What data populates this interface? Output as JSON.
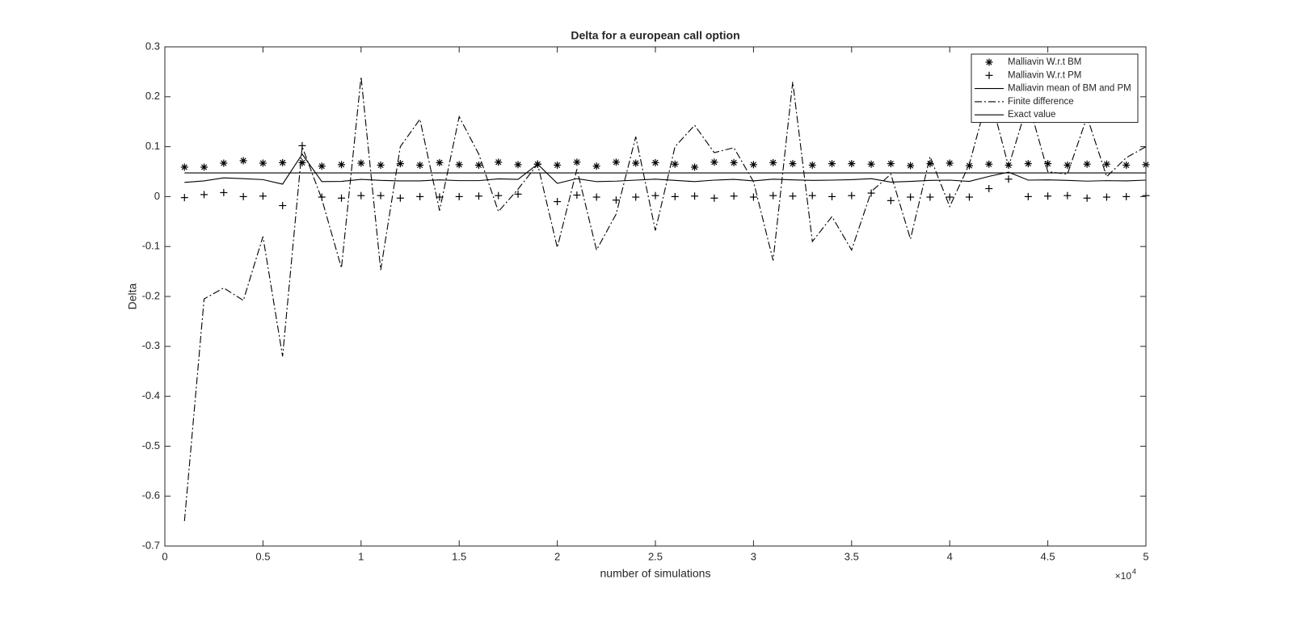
{
  "chart_data": {
    "type": "line",
    "title": "Delta for a european call option",
    "x_label": "number of simulations",
    "y_label": "Delta",
    "x_exponent": {
      "base": "×10",
      "power": "4"
    },
    "x": [
      1000,
      2000,
      3000,
      4000,
      5000,
      6000,
      7000,
      8000,
      9000,
      10000,
      11000,
      12000,
      13000,
      14000,
      15000,
      16000,
      17000,
      18000,
      19000,
      20000,
      21000,
      22000,
      23000,
      24000,
      25000,
      26000,
      27000,
      28000,
      29000,
      30000,
      31000,
      32000,
      33000,
      34000,
      35000,
      36000,
      37000,
      38000,
      39000,
      40000,
      41000,
      42000,
      43000,
      44000,
      45000,
      46000,
      47000,
      48000,
      49000,
      50000
    ],
    "xlim": [
      0,
      50000
    ],
    "xticks": [
      0,
      {
        "value": 5000,
        "label": "0.5"
      },
      {
        "value": 10000,
        "label": "1"
      },
      {
        "value": 15000,
        "label": "1.5"
      },
      {
        "value": 20000,
        "label": "2"
      },
      {
        "value": 25000,
        "label": "2.5"
      },
      {
        "value": 30000,
        "label": "3"
      },
      {
        "value": 35000,
        "label": "3.5"
      },
      {
        "value": 40000,
        "label": "4"
      },
      {
        "value": 45000,
        "label": "4.5"
      },
      {
        "value": 50000,
        "label": "5"
      }
    ],
    "ylim": [
      -0.7,
      0.3
    ],
    "yticks": [
      -0.7,
      -0.6,
      -0.5,
      -0.4,
      -0.3,
      -0.2,
      -0.1,
      0,
      0.1,
      0.2,
      0.3
    ],
    "grid": false,
    "legend": "upper-right",
    "series": [
      {
        "name": "Malliavin W.r.t BM",
        "color": "#000000",
        "marker": "*",
        "linestyle": "none",
        "values": [
          0.059,
          0.059,
          0.067,
          0.072,
          0.067,
          0.068,
          0.068,
          0.061,
          0.064,
          0.067,
          0.063,
          0.066,
          0.063,
          0.068,
          0.064,
          0.063,
          0.069,
          0.064,
          0.065,
          0.063,
          0.069,
          0.061,
          0.069,
          0.067,
          0.068,
          0.065,
          0.059,
          0.069,
          0.068,
          0.064,
          0.068,
          0.066,
          0.063,
          0.066,
          0.066,
          0.065,
          0.066,
          0.062,
          0.066,
          0.067,
          0.062,
          0.065,
          0.063,
          0.066,
          0.066,
          0.063,
          0.065,
          0.065,
          0.063,
          0.064
        ]
      },
      {
        "name": "Malliavin W.r.t PM",
        "color": "#000000",
        "marker": "+",
        "linestyle": "none",
        "values": [
          -0.002,
          0.004,
          0.008,
          0,
          0.001,
          -0.018,
          0.102,
          -0.001,
          -0.003,
          0.002,
          0.002,
          -0.003,
          0,
          -0.001,
          0,
          0.001,
          0.002,
          0.005,
          0.065,
          -0.01,
          0.003,
          -0.001,
          -0.007,
          -0.001,
          0.002,
          0,
          0.001,
          -0.003,
          0.001,
          -0.001,
          0.002,
          0.001,
          0.002,
          0,
          0.002,
          0.007,
          -0.008,
          -0.001,
          -0.001,
          -0.001,
          -0.001,
          0.016,
          0.035,
          0,
          0.001,
          0.002,
          -0.003,
          -0.001,
          0,
          0.002
        ]
      },
      {
        "name": "Malliavin mean of BM and PM",
        "color": "#000000",
        "marker": "none",
        "linestyle": "solid",
        "values": [
          0.0285,
          0.0315,
          0.0375,
          0.036,
          0.034,
          0.025,
          0.085,
          0.03,
          0.0305,
          0.0345,
          0.0325,
          0.0315,
          0.0315,
          0.0335,
          0.032,
          0.032,
          0.0355,
          0.0345,
          0.065,
          0.0265,
          0.036,
          0.03,
          0.031,
          0.033,
          0.035,
          0.0325,
          0.03,
          0.033,
          0.0345,
          0.0315,
          0.035,
          0.0335,
          0.0325,
          0.033,
          0.034,
          0.036,
          0.029,
          0.0305,
          0.0325,
          0.033,
          0.0305,
          0.0405,
          0.049,
          0.033,
          0.0335,
          0.0325,
          0.031,
          0.032,
          0.0315,
          0.033
        ]
      },
      {
        "name": "Finite difference",
        "color": "#000000",
        "marker": "none",
        "linestyle": "dashdot",
        "values": [
          -0.65,
          -0.205,
          -0.183,
          -0.208,
          -0.08,
          -0.32,
          0.1,
          -0.005,
          -0.143,
          0.24,
          -0.147,
          0.1,
          0.155,
          -0.028,
          0.16,
          0.085,
          -0.03,
          0.015,
          0.065,
          -0.102,
          0.055,
          -0.107,
          -0.035,
          0.12,
          -0.068,
          0.1,
          0.143,
          0.088,
          0.098,
          0.03,
          -0.128,
          0.23,
          -0.09,
          -0.04,
          -0.107,
          0.01,
          0.045,
          -0.085,
          0.08,
          -0.02,
          0.065,
          0.21,
          0.06,
          0.19,
          0.05,
          0.045,
          0.16,
          0.04,
          0.078,
          0.1
        ]
      },
      {
        "name": "Exact value",
        "color": "#000000",
        "marker": "none",
        "linestyle": "solid",
        "values": [
          0.0475,
          0.0475,
          0.0475,
          0.0475,
          0.0475,
          0.0475,
          0.0475,
          0.0475,
          0.0475,
          0.0475,
          0.0475,
          0.0475,
          0.0475,
          0.0475,
          0.0475,
          0.0475,
          0.0475,
          0.0475,
          0.0475,
          0.0475,
          0.0475,
          0.0475,
          0.0475,
          0.0475,
          0.0475,
          0.0475,
          0.0475,
          0.0475,
          0.0475,
          0.0475,
          0.0475,
          0.0475,
          0.0475,
          0.0475,
          0.0475,
          0.0475,
          0.0475,
          0.0475,
          0.0475,
          0.0475,
          0.0475,
          0.0475,
          0.0475,
          0.0475,
          0.0475,
          0.0475,
          0.0475,
          0.0475,
          0.0475,
          0.0475
        ]
      }
    ]
  }
}
